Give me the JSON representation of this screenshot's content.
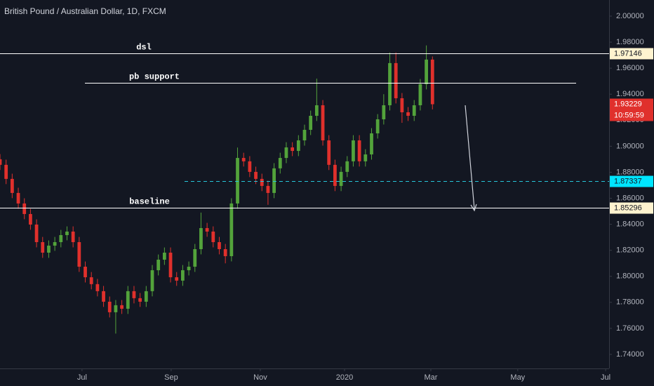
{
  "chart_data": {
    "type": "candlestick",
    "title": "British Pound / Australian Dollar, 1D, FXCM",
    "x": [
      0,
      3,
      6,
      9,
      12,
      15,
      18,
      21,
      24,
      27,
      30,
      33,
      36,
      39,
      42,
      45,
      48,
      51,
      54,
      57,
      60,
      63,
      66,
      69,
      72,
      75,
      78,
      81,
      84,
      87,
      90,
      93,
      96,
      99,
      102,
      105,
      108,
      111,
      114,
      117,
      120,
      123,
      126,
      129,
      132,
      135,
      138,
      141,
      144,
      147,
      150,
      153,
      156,
      159,
      162,
      165,
      168,
      171,
      174,
      177,
      180,
      183,
      186,
      189,
      192,
      195,
      198,
      201,
      204,
      207,
      210,
      213
    ],
    "open": [
      1.89,
      1.8857,
      1.8749,
      1.8641,
      1.856,
      1.8479,
      1.8398,
      1.8263,
      1.8182,
      1.8236,
      1.8263,
      1.8317,
      1.8344,
      1.8263,
      1.8074,
      1.7993,
      1.794,
      1.7886,
      1.7805,
      1.7724,
      1.7778,
      1.7751,
      1.7886,
      1.7832,
      1.7805,
      1.7886,
      1.8047,
      1.8128,
      1.8182,
      1.7993,
      1.7967,
      1.8047,
      1.8074,
      1.8209,
      1.8371,
      1.8344,
      1.8263,
      1.8209,
      1.8155,
      1.856,
      1.891,
      1.8884,
      1.8803,
      1.8749,
      1.8695,
      1.8641,
      1.883,
      1.891,
      1.8991,
      1.8964,
      1.9045,
      1.9126,
      1.9234,
      1.9315,
      1.9045,
      1.8857,
      1.8695,
      1.8803,
      1.8884,
      1.9045,
      1.8884,
      1.8937,
      1.9099,
      1.9207,
      1.9315,
      1.9639,
      1.9369,
      1.9261,
      1.9234,
      1.9315,
      1.9477,
      1.9666
    ],
    "high": [
      1.894,
      1.8897,
      1.8789,
      1.8681,
      1.86,
      1.8519,
      1.8438,
      1.8303,
      1.8276,
      1.8303,
      1.8357,
      1.8384,
      1.8384,
      1.8303,
      1.8114,
      1.8033,
      1.798,
      1.7926,
      1.7845,
      1.7818,
      1.7818,
      1.7926,
      1.7926,
      1.7872,
      1.7926,
      1.8087,
      1.8168,
      1.8222,
      1.8222,
      1.8033,
      1.8087,
      1.8114,
      1.8249,
      1.849,
      1.8411,
      1.8384,
      1.8303,
      1.8249,
      1.86,
      1.899,
      1.895,
      1.8924,
      1.8843,
      1.8789,
      1.8735,
      1.887,
      1.895,
      1.9031,
      1.9031,
      1.9085,
      1.9166,
      1.9274,
      1.952,
      1.9355,
      1.9085,
      1.8897,
      1.8843,
      1.8924,
      1.9085,
      1.9085,
      1.8977,
      1.9139,
      1.9247,
      1.94,
      1.972,
      1.972,
      1.9409,
      1.9301,
      1.9355,
      1.9517,
      1.9775,
      1.969
    ],
    "low": [
      1.8817,
      1.8709,
      1.8601,
      1.852,
      1.8439,
      1.8358,
      1.8223,
      1.8142,
      1.8142,
      1.8196,
      1.8223,
      1.8277,
      1.8223,
      1.8034,
      1.7953,
      1.79,
      1.7846,
      1.7765,
      1.7684,
      1.756,
      1.7711,
      1.7711,
      1.7792,
      1.7765,
      1.7765,
      1.7846,
      1.8007,
      1.8088,
      1.7953,
      1.7927,
      1.7927,
      1.8007,
      1.8034,
      1.8169,
      1.8304,
      1.8223,
      1.8169,
      1.81,
      1.8115,
      1.852,
      1.8844,
      1.8763,
      1.8709,
      1.8655,
      1.855,
      1.8601,
      1.879,
      1.887,
      1.8924,
      1.8924,
      1.9005,
      1.9086,
      1.9194,
      1.9005,
      1.8817,
      1.8655,
      1.8655,
      1.8763,
      1.8844,
      1.8844,
      1.8844,
      1.8897,
      1.9059,
      1.9167,
      1.9275,
      1.9329,
      1.918,
      1.9194,
      1.9194,
      1.9275,
      1.9437,
      1.9283
    ],
    "close": [
      1.8857,
      1.8749,
      1.8641,
      1.856,
      1.8479,
      1.8398,
      1.8263,
      1.8182,
      1.8236,
      1.8263,
      1.8317,
      1.8344,
      1.8263,
      1.8074,
      1.7993,
      1.794,
      1.7886,
      1.7805,
      1.7724,
      1.7778,
      1.7751,
      1.7886,
      1.7832,
      1.7805,
      1.7886,
      1.8047,
      1.8128,
      1.8182,
      1.7993,
      1.7967,
      1.8047,
      1.8074,
      1.8209,
      1.8371,
      1.8344,
      1.8263,
      1.8209,
      1.8155,
      1.856,
      1.891,
      1.8884,
      1.8803,
      1.8749,
      1.8695,
      1.8641,
      1.883,
      1.891,
      1.8991,
      1.8964,
      1.9045,
      1.9126,
      1.9234,
      1.9315,
      1.9045,
      1.8857,
      1.8695,
      1.8803,
      1.8884,
      1.9045,
      1.8884,
      1.8937,
      1.9099,
      1.9207,
      1.9315,
      1.9639,
      1.9369,
      1.9261,
      1.9234,
      1.9315,
      1.9477,
      1.9666,
      1.93229
    ],
    "up_color": "#53a33b",
    "down_color": "#e0302c",
    "countdown": "10:59:59",
    "xlim": [
      0,
      300
    ],
    "xticks": [
      {
        "value": 40.4,
        "label": "Jul"
      },
      {
        "value": 84.3,
        "label": "Sep"
      },
      {
        "value": 128.2,
        "label": "Nov"
      },
      {
        "value": 169.7,
        "label": "2020"
      },
      {
        "value": 212.2,
        "label": "Mar"
      },
      {
        "value": 255,
        "label": "May"
      },
      {
        "value": 298.3,
        "label": "Jul"
      }
    ],
    "ylim": [
      1.7292,
      2.0124
    ],
    "yticks": [
      {
        "value": 1.74,
        "label": "1.74000"
      },
      {
        "value": 1.76,
        "label": "1.76000"
      },
      {
        "value": 1.78,
        "label": "1.78000"
      },
      {
        "value": 1.8,
        "label": "1.80000"
      },
      {
        "value": 1.82,
        "label": "1.82000"
      },
      {
        "value": 1.84,
        "label": "1.84000"
      },
      {
        "value": 1.86,
        "label": "1.86000"
      },
      {
        "value": 1.88,
        "label": "1.88000"
      },
      {
        "value": 1.9,
        "label": "1.90000"
      },
      {
        "value": 1.92,
        "label": "1.92000"
      },
      {
        "value": 1.94,
        "label": "1.94000"
      },
      {
        "value": 1.96,
        "label": "1.96000"
      },
      {
        "value": 1.98,
        "label": "1.98000"
      },
      {
        "value": 2.0,
        "label": "2.00000"
      }
    ],
    "lines": [
      {
        "label": "dsl",
        "value": 1.97146,
        "color": "#ffffff",
        "tag": true,
        "tag_color": "#fff3cf"
      },
      {
        "label": "pb support",
        "value": 1.9488,
        "color": "#ffffff",
        "tag": false
      },
      {
        "value": 1.87337,
        "color": "#26c6da",
        "style": "dashed",
        "tag": true,
        "tag_color": "#00e5ff"
      },
      {
        "label": "baseline",
        "value": 1.85296,
        "color": "#ffffff",
        "tag": true,
        "tag_color": "#fff3cf"
      }
    ]
  }
}
